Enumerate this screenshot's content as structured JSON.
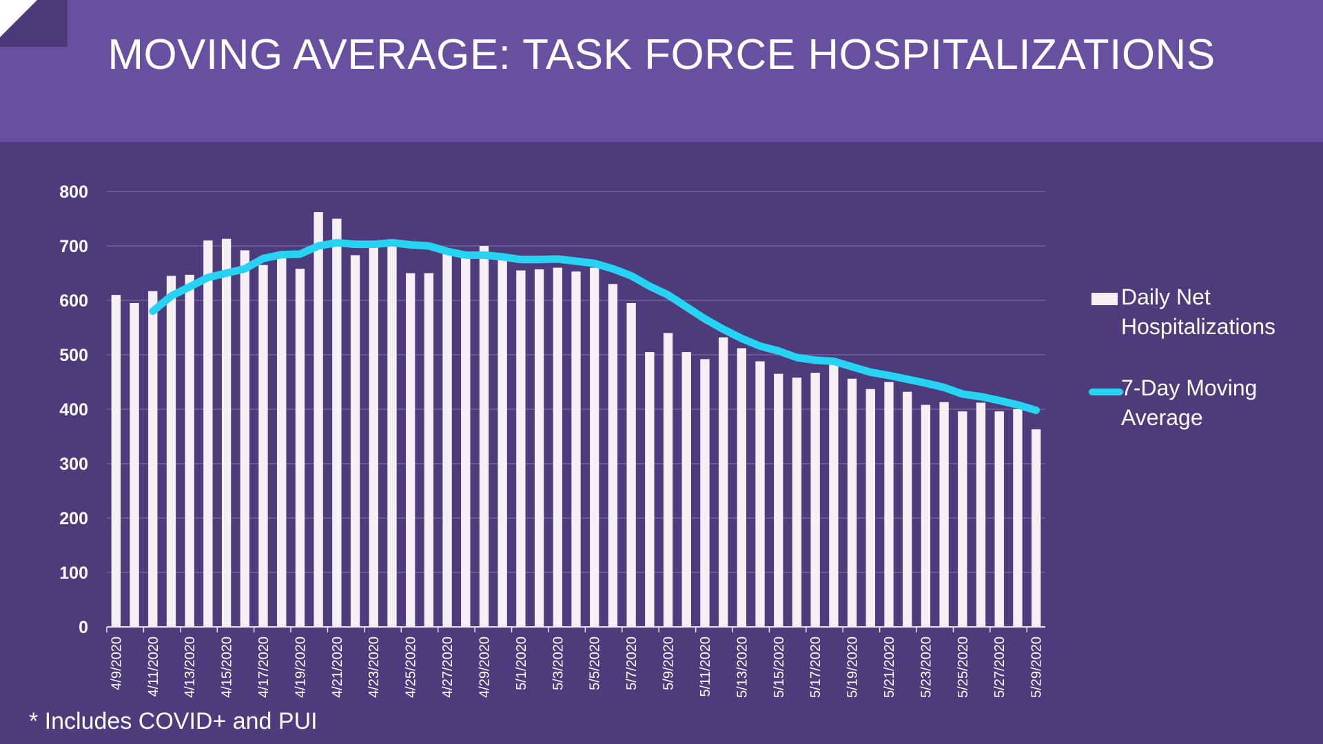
{
  "slide": {
    "title": "MOVING AVERAGE: TASK FORCE HOSPITALIZATIONS",
    "footnote": "* Includes COVID+ and PUI"
  },
  "colors": {
    "header_bg": "#6750a0",
    "body_bg": "#4e3b7b",
    "bar": "#f4f0f6",
    "line": "#27d3f2",
    "text": "#ffffff",
    "gridline": "#7a6aa3"
  },
  "chart_data": {
    "type": "bar",
    "title": "",
    "xlabel": "",
    "ylabel": "",
    "ylim": [
      0,
      800
    ],
    "yticks": [
      0,
      100,
      200,
      300,
      400,
      500,
      600,
      700,
      800
    ],
    "grid": true,
    "legend_position": "right",
    "categories": [
      "4/9/2020",
      "4/10/2020",
      "4/11/2020",
      "4/12/2020",
      "4/13/2020",
      "4/14/2020",
      "4/15/2020",
      "4/16/2020",
      "4/17/2020",
      "4/18/2020",
      "4/19/2020",
      "4/20/2020",
      "4/21/2020",
      "4/22/2020",
      "4/23/2020",
      "4/24/2020",
      "4/25/2020",
      "4/26/2020",
      "4/27/2020",
      "4/28/2020",
      "4/29/2020",
      "4/30/2020",
      "5/1/2020",
      "5/2/2020",
      "5/3/2020",
      "5/4/2020",
      "5/5/2020",
      "5/6/2020",
      "5/7/2020",
      "5/8/2020",
      "5/9/2020",
      "5/10/2020",
      "5/11/2020",
      "5/12/2020",
      "5/13/2020",
      "5/14/2020",
      "5/15/2020",
      "5/16/2020",
      "5/17/2020",
      "5/18/2020",
      "5/19/2020",
      "5/20/2020",
      "5/21/2020",
      "5/22/2020",
      "5/23/2020",
      "5/24/2020",
      "5/25/2020",
      "5/26/2020",
      "5/27/2020",
      "5/28/2020",
      "5/29/2020"
    ],
    "tick_labels": [
      "4/9/2020",
      "4/11/2020",
      "4/13/2020",
      "4/15/2020",
      "4/17/2020",
      "4/19/2020",
      "4/21/2020",
      "4/23/2020",
      "4/25/2020",
      "4/27/2020",
      "4/29/2020",
      "5/1/2020",
      "5/3/2020",
      "5/5/2020",
      "5/7/2020",
      "5/9/2020",
      "5/11/2020",
      "5/13/2020",
      "5/15/2020",
      "5/17/2020",
      "5/19/2020",
      "5/21/2020",
      "5/23/2020",
      "5/25/2020",
      "5/27/2020",
      "5/29/2020"
    ],
    "series": [
      {
        "name": "Daily Net Hospitalizations",
        "kind": "bar",
        "values": [
          610,
          595,
          617,
          645,
          647,
          710,
          713,
          692,
          665,
          682,
          658,
          762,
          750,
          683,
          698,
          700,
          650,
          650,
          685,
          683,
          700,
          678,
          655,
          657,
          660,
          653,
          660,
          630,
          595,
          505,
          540,
          505,
          492,
          532,
          512,
          488,
          465,
          458,
          467,
          485,
          456,
          437,
          450,
          432,
          408,
          413,
          396,
          412,
          396,
          400,
          363
        ]
      },
      {
        "name": "7-Day Moving Average",
        "kind": "line",
        "values": [
          null,
          null,
          580,
          608,
          625,
          642,
          650,
          658,
          677,
          684,
          685,
          700,
          706,
          703,
          703,
          706,
          702,
          700,
          690,
          683,
          683,
          680,
          675,
          675,
          676,
          672,
          668,
          658,
          645,
          626,
          610,
          588,
          566,
          547,
          530,
          516,
          507,
          495,
          490,
          488,
          478,
          468,
          462,
          455,
          448,
          440,
          428,
          423,
          416,
          408,
          398
        ]
      }
    ]
  }
}
